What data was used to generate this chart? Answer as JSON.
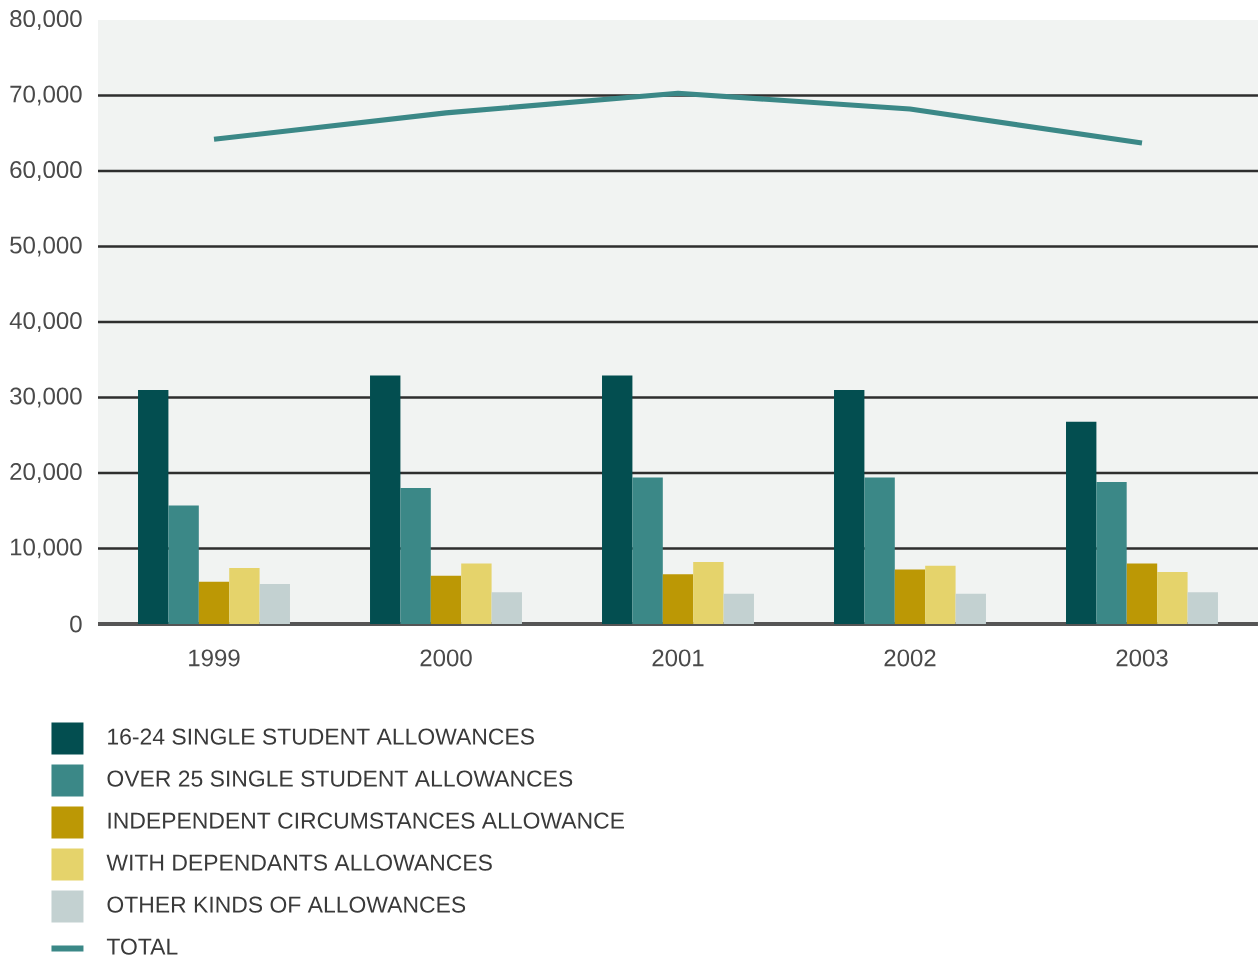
{
  "chart_data": {
    "type": "bar",
    "categories": [
      "1999",
      "2000",
      "2001",
      "2002",
      "2003"
    ],
    "series": [
      {
        "name": "16-24 SINGLE STUDENT ALLOWANCES",
        "color": "#034e50",
        "values": [
          31000,
          32900,
          32900,
          31000,
          26800
        ]
      },
      {
        "name": "OVER 25 SINGLE STUDENT ALLOWANCES",
        "color": "#3b8887",
        "values": [
          15700,
          18000,
          19400,
          19400,
          18800
        ]
      },
      {
        "name": "INDEPENDENT CIRCUMSTANCES ALLOWANCE",
        "color": "#bc9805",
        "values": [
          5600,
          6400,
          6600,
          7200,
          8000
        ]
      },
      {
        "name": "WITH DEPENDANTS ALLOWANCES",
        "color": "#e5d36b",
        "values": [
          7400,
          8000,
          8200,
          7700,
          6900
        ]
      },
      {
        "name": "OTHER KINDS OF ALLOWANCES",
        "color": "#c3d1d1",
        "values": [
          5300,
          4200,
          4000,
          4000,
          4200
        ]
      },
      {
        "name": "TOTAL",
        "type": "line",
        "color": "#3b8887",
        "values": [
          64200,
          67700,
          70300,
          68200,
          63700
        ]
      }
    ],
    "ylim": [
      0,
      80000
    ],
    "yticks": [
      0,
      {
        "value": 10000,
        "label": "10,000"
      },
      {
        "value": 20000,
        "label": "20,000"
      },
      {
        "value": 30000,
        "label": "30,000"
      },
      {
        "value": 40000,
        "label": "40,000"
      },
      {
        "value": 50000,
        "label": "50,000"
      },
      {
        "value": 60000,
        "label": "60,000"
      },
      {
        "value": 70000,
        "label": "70,000"
      },
      {
        "value": 80000,
        "label": "80,000"
      }
    ],
    "grid": "y",
    "legend": "bottom"
  }
}
